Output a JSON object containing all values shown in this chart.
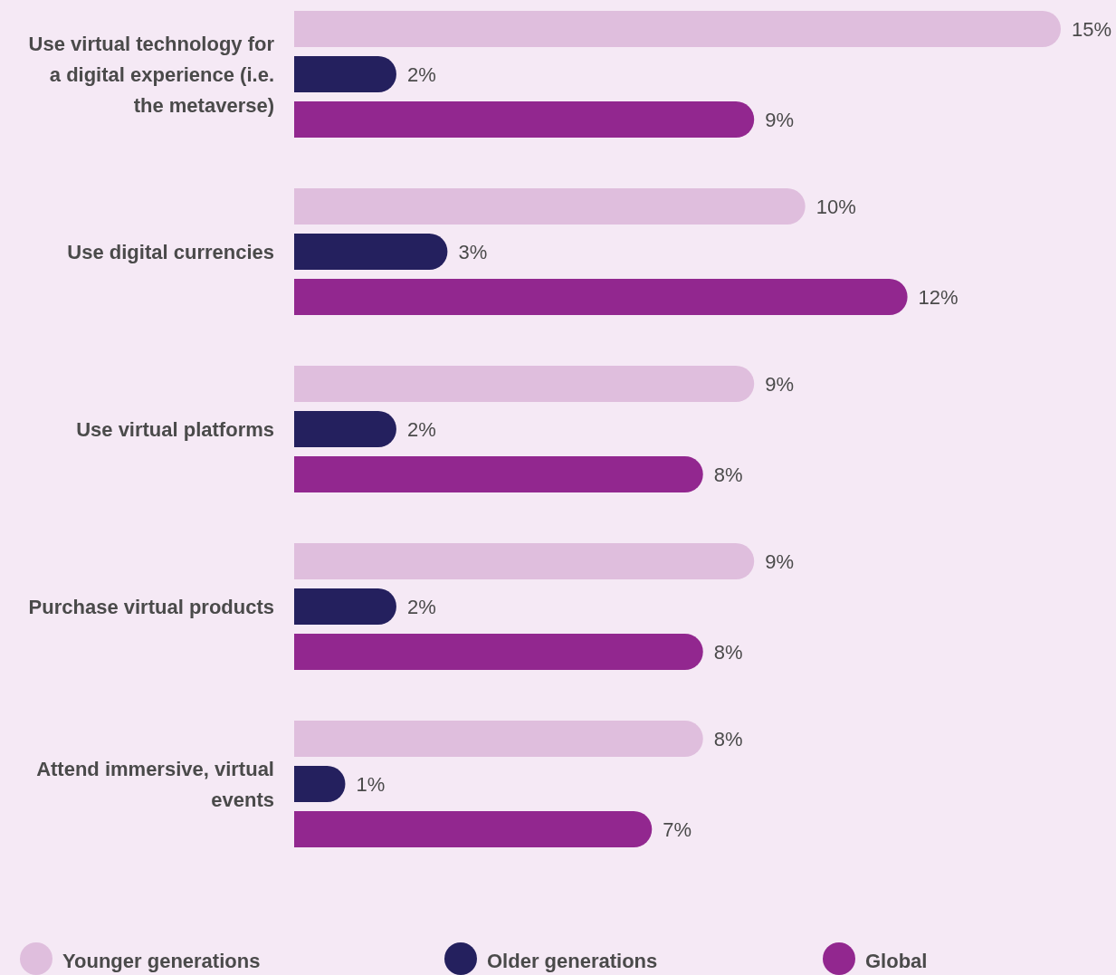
{
  "chart_data": {
    "type": "bar",
    "orientation": "horizontal",
    "categories": [
      "Use virtual technology for a digital experience (i.e. the metaverse)",
      "Use digital currencies",
      "Use virtual platforms",
      "Purchase virtual products",
      "Attend immersive, virtual events"
    ],
    "series": [
      {
        "name": "Younger generations",
        "color": "#dfbedd",
        "values": [
          15,
          10,
          9,
          9,
          8
        ],
        "value_labels": [
          "15%",
          "10%",
          "9%",
          "9%",
          "8%"
        ]
      },
      {
        "name": "Older generations",
        "color": "#24205e",
        "values": [
          2,
          3,
          2,
          2,
          1
        ],
        "value_labels": [
          "2%",
          "3%",
          "2%",
          "2%",
          "1%"
        ]
      },
      {
        "name": "Global",
        "color": "#92278f",
        "values": [
          9,
          12,
          8,
          8,
          7
        ],
        "value_labels": [
          "9%",
          "12%",
          "8%",
          "8%",
          "7%"
        ]
      }
    ],
    "legend": "bottom"
  }
}
